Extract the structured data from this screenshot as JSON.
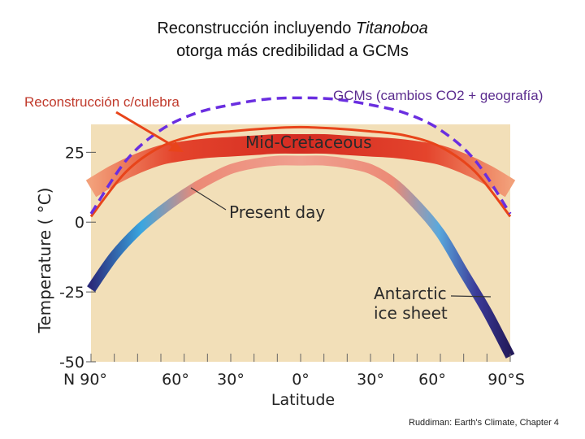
{
  "title": {
    "line1_prefix": "Reconstrucción incluyendo ",
    "line1_italic": "Titanoboa",
    "line2": "otorga más credibilidad a GCMs"
  },
  "labels": {
    "reconstruction": "Reconstrucción c/culebra",
    "gcm": "GCMs (cambios CO2 + geografía)"
  },
  "credit": "Ruddiman: Earth's Climate, Chapter 4",
  "colors": {
    "panel": "#f2dfb8",
    "mid_cretaceous": "#e0402b",
    "present_day_warm": "#ec8a76",
    "present_day_cold": "#3aa6e0",
    "antarctic": "#2a1f6e",
    "reconstruction_line": "#e8441a",
    "gcm_line": "#6a2ee0"
  },
  "chart_data": {
    "type": "line",
    "xlabel": "Latitude",
    "ylabel": "Temperature ( °C)",
    "xlim": [
      -90,
      90
    ],
    "ylim": [
      -50,
      35
    ],
    "y_ticks": [
      25,
      0,
      -25,
      -50
    ],
    "y_tick_labels": [
      "25",
      "0",
      "-25",
      "-50"
    ],
    "x_tick_labels": [
      {
        "x": -90,
        "label": "N 90°"
      },
      {
        "x": -60,
        "label": "60°"
      },
      {
        "x": -30,
        "label": "30°"
      },
      {
        "x": 0,
        "label": "0°"
      },
      {
        "x": 30,
        "label": "30°"
      },
      {
        "x": 60,
        "label": "60°"
      },
      {
        "x": 90,
        "label": "90°S"
      }
    ],
    "annotations": {
      "mid_cretaceous": "Mid-Cretaceous",
      "present_day": "Present day",
      "antarctic_line1": "Antarctic",
      "antarctic_line2": "ice sheet"
    },
    "series": [
      {
        "name": "Mid-Cretaceous",
        "x": [
          -90,
          -80,
          -70,
          -60,
          -50,
          -40,
          -30,
          -20,
          -10,
          0,
          10,
          20,
          30,
          40,
          50,
          60,
          70,
          80,
          90
        ],
        "y": [
          12,
          17,
          21,
          24,
          25.5,
          26.5,
          27,
          27.5,
          28,
          28,
          28,
          27.5,
          27,
          26.5,
          25.5,
          24,
          21,
          17,
          12
        ]
      },
      {
        "name": "Present day",
        "x": [
          -90,
          -80,
          -70,
          -60,
          -50,
          -40,
          -30,
          -20,
          -10,
          0,
          10,
          20,
          30,
          40,
          50,
          60,
          70,
          80,
          90
        ],
        "y": [
          -24,
          -12,
          -3,
          4,
          10,
          15,
          19,
          21,
          22,
          22,
          22,
          21,
          19,
          14,
          6,
          -4,
          -18,
          -32,
          -48
        ]
      },
      {
        "name": "Reconstrucción c/culebra",
        "x": [
          -90,
          -75,
          -60,
          -45,
          -30,
          -15,
          0,
          15,
          30,
          45,
          60,
          75,
          90
        ],
        "y": [
          2,
          18,
          27,
          31,
          32.5,
          33.5,
          34,
          33.5,
          32.5,
          31,
          27,
          18,
          2
        ]
      },
      {
        "name": "GCMs (cambios CO2 + geografía)",
        "x": [
          -90,
          -75,
          -60,
          -45,
          -30,
          -15,
          0,
          15,
          30,
          45,
          60,
          75,
          90
        ],
        "y": [
          3,
          22,
          33,
          39,
          42,
          44,
          44.5,
          44,
          42,
          39,
          33,
          22,
          3
        ]
      }
    ]
  }
}
